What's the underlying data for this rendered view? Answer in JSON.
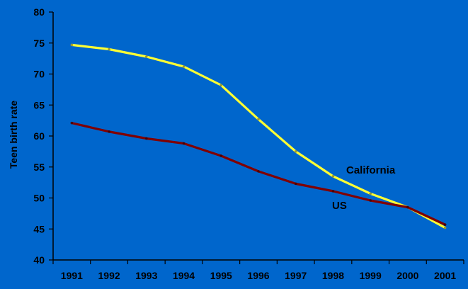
{
  "chart_data": {
    "type": "line",
    "title": "",
    "xlabel": "",
    "ylabel": "Teen birth rate",
    "ylim": [
      40,
      80
    ],
    "yticks": [
      40,
      45,
      50,
      55,
      60,
      65,
      70,
      75,
      80
    ],
    "categories": [
      "1991",
      "1992",
      "1993",
      "1994",
      "1995",
      "1996",
      "1997",
      "1998",
      "1999",
      "2000",
      "2001"
    ],
    "grid": false,
    "legend": "none",
    "series": [
      {
        "name": "California",
        "color": "#ffff33",
        "values": [
          74.7,
          74.0,
          72.8,
          71.2,
          68.2,
          62.7,
          57.5,
          53.5,
          50.7,
          48.5,
          45.2
        ]
      },
      {
        "name": "US",
        "color": "#800000",
        "values": [
          62.1,
          60.7,
          59.6,
          58.8,
          56.8,
          54.3,
          52.3,
          51.1,
          49.6,
          48.5,
          45.7
        ]
      }
    ]
  }
}
